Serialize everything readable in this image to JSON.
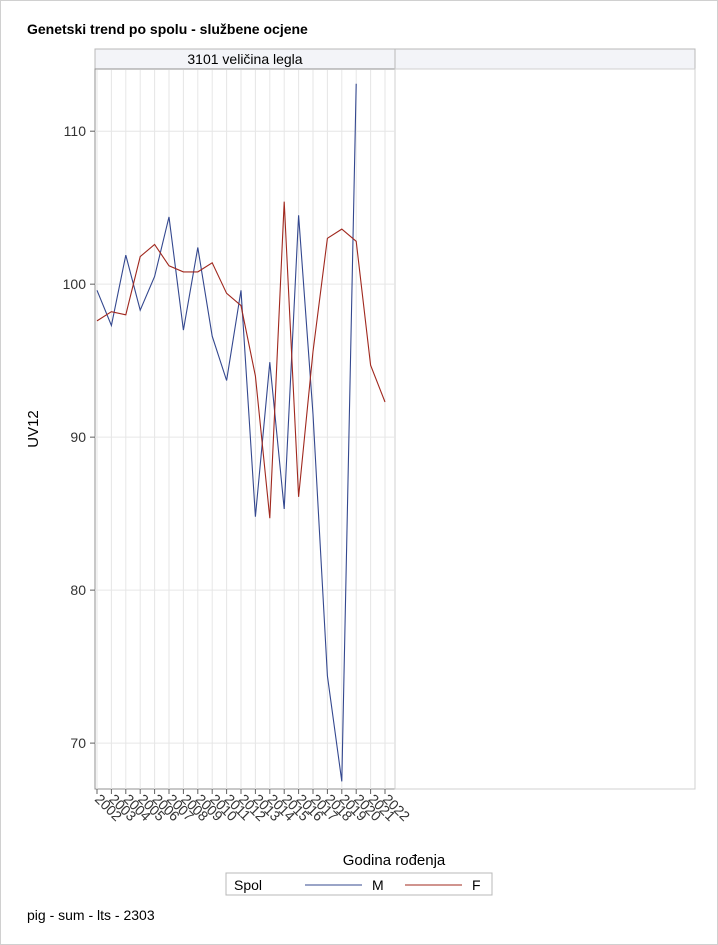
{
  "title": "Genetski trend po spolu - službene ocjene",
  "footer": "pig - sum - lts - 2303",
  "chart_data": {
    "type": "line",
    "panel_label": "3101 veličina legla",
    "xlabel": "Godina rođenja",
    "ylabel": "UV12",
    "x": [
      "2002",
      "2003",
      "2004",
      "2005",
      "2006",
      "2007",
      "2008",
      "2009",
      "2010",
      "2011",
      "2012",
      "2013",
      "2014",
      "2015",
      "2016",
      "2017",
      "2018",
      "2019",
      "2020",
      "2021",
      "2022"
    ],
    "ylim": [
      67,
      114
    ],
    "yticks": [
      70,
      80,
      90,
      100,
      110
    ],
    "grid": true,
    "legend": {
      "title": "Spol",
      "position": "bottom"
    },
    "series": [
      {
        "name": "M",
        "color": "#34488f",
        "values": [
          99.6,
          97.3,
          101.9,
          98.3,
          100.5,
          104.4,
          97.0,
          102.4,
          96.6,
          93.7,
          99.6,
          84.8,
          94.9,
          85.3,
          104.5,
          91.5,
          74.4,
          67.5,
          113.1,
          null,
          null
        ]
      },
      {
        "name": "F",
        "color": "#a0281e",
        "values": [
          97.6,
          98.2,
          98.0,
          101.8,
          102.6,
          101.2,
          100.8,
          100.8,
          101.4,
          99.4,
          98.6,
          94.0,
          84.7,
          105.4,
          86.1,
          95.6,
          103.0,
          103.6,
          102.8,
          94.7,
          92.3
        ]
      }
    ]
  }
}
